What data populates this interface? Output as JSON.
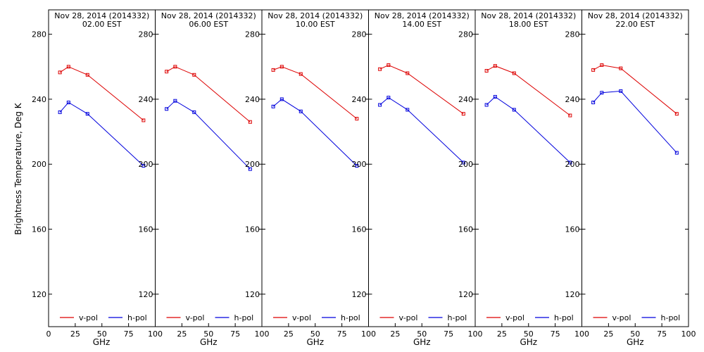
{
  "figure": {
    "ylabel": "Brightness Temperature, Deg K",
    "xlabel": "GHz"
  },
  "chart_data": [
    {
      "type": "line",
      "title": "Nov 28, 2014 (2014332)",
      "subtitle": "02.00 EST",
      "xlabel": "GHz",
      "ylabel": "Brightness Temperature, Deg K",
      "xlim": [
        0,
        100
      ],
      "ylim": [
        100,
        295
      ],
      "xticks": [
        0,
        25,
        50,
        75,
        100
      ],
      "yticks": [
        120,
        160,
        200,
        240,
        280
      ],
      "grid": false,
      "legend": "bottom",
      "x": [
        10.65,
        18.7,
        36.5,
        89.0
      ],
      "series": [
        {
          "name": "v-pol",
          "color": "#dd0000",
          "values": [
            256.5,
            260,
            255,
            227
          ]
        },
        {
          "name": "h-pol",
          "color": "#0000dd",
          "values": [
            232,
            238,
            231,
            199
          ]
        }
      ]
    },
    {
      "type": "line",
      "title": "Nov 28, 2014 (2014332)",
      "subtitle": "06.00 EST",
      "xlabel": "GHz",
      "ylabel": "Brightness Temperature, Deg K",
      "xlim": [
        0,
        100
      ],
      "ylim": [
        100,
        295
      ],
      "xticks": [
        0,
        25,
        50,
        75,
        100
      ],
      "yticks": [
        120,
        160,
        200,
        240,
        280
      ],
      "grid": false,
      "legend": "bottom",
      "x": [
        10.65,
        18.7,
        36.5,
        89.0
      ],
      "series": [
        {
          "name": "v-pol",
          "color": "#dd0000",
          "values": [
            257,
            260,
            255,
            226
          ]
        },
        {
          "name": "h-pol",
          "color": "#0000dd",
          "values": [
            234,
            239,
            232,
            197
          ]
        }
      ]
    },
    {
      "type": "line",
      "title": "Nov 28, 2014 (2014332)",
      "subtitle": "10.00 EST",
      "xlabel": "GHz",
      "ylabel": "Brightness Temperature, Deg K",
      "xlim": [
        0,
        100
      ],
      "ylim": [
        100,
        295
      ],
      "xticks": [
        0,
        25,
        50,
        75,
        100
      ],
      "yticks": [
        120,
        160,
        200,
        240,
        280
      ],
      "grid": false,
      "legend": "bottom",
      "x": [
        10.65,
        18.7,
        36.5,
        89.0
      ],
      "series": [
        {
          "name": "v-pol",
          "color": "#dd0000",
          "values": [
            258,
            260,
            255.5,
            228
          ]
        },
        {
          "name": "h-pol",
          "color": "#0000dd",
          "values": [
            235.5,
            240,
            232.5,
            199
          ]
        }
      ]
    },
    {
      "type": "line",
      "title": "Nov 28, 2014 (2014332)",
      "subtitle": "14.00 EST",
      "xlabel": "GHz",
      "ylabel": "Brightness Temperature, Deg K",
      "xlim": [
        0,
        100
      ],
      "ylim": [
        100,
        295
      ],
      "xticks": [
        0,
        25,
        50,
        75,
        100
      ],
      "yticks": [
        120,
        160,
        200,
        240,
        280
      ],
      "grid": false,
      "legend": "bottom",
      "x": [
        10.65,
        18.7,
        36.5,
        89.0
      ],
      "series": [
        {
          "name": "v-pol",
          "color": "#dd0000",
          "values": [
            258.5,
            261,
            256,
            231
          ]
        },
        {
          "name": "h-pol",
          "color": "#0000dd",
          "values": [
            236.5,
            241,
            233.5,
            201
          ]
        }
      ]
    },
    {
      "type": "line",
      "title": "Nov 28, 2014 (2014332)",
      "subtitle": "18.00 EST",
      "xlabel": "GHz",
      "ylabel": "Brightness Temperature, Deg K",
      "xlim": [
        0,
        100
      ],
      "ylim": [
        100,
        295
      ],
      "xticks": [
        0,
        25,
        50,
        75,
        100
      ],
      "yticks": [
        120,
        160,
        200,
        240,
        280
      ],
      "grid": false,
      "legend": "bottom",
      "x": [
        10.65,
        18.7,
        36.5,
        89.0
      ],
      "series": [
        {
          "name": "v-pol",
          "color": "#dd0000",
          "values": [
            257.5,
            260.5,
            256,
            230
          ]
        },
        {
          "name": "h-pol",
          "color": "#0000dd",
          "values": [
            236.5,
            241.5,
            233.5,
            201
          ]
        }
      ]
    },
    {
      "type": "line",
      "title": "Nov 28, 2014 (2014332)",
      "subtitle": "22.00 EST",
      "xlabel": "GHz",
      "ylabel": "Brightness Temperature, Deg K",
      "xlim": [
        0,
        100
      ],
      "ylim": [
        100,
        295
      ],
      "xticks": [
        0,
        25,
        50,
        75,
        100
      ],
      "yticks": [
        120,
        160,
        200,
        240,
        280
      ],
      "grid": false,
      "legend": "bottom",
      "x": [
        10.65,
        18.7,
        36.5,
        89.0
      ],
      "series": [
        {
          "name": "v-pol",
          "color": "#dd0000",
          "values": [
            258,
            261,
            259,
            231
          ]
        },
        {
          "name": "h-pol",
          "color": "#0000dd",
          "values": [
            238,
            244,
            245,
            207
          ]
        }
      ]
    }
  ]
}
